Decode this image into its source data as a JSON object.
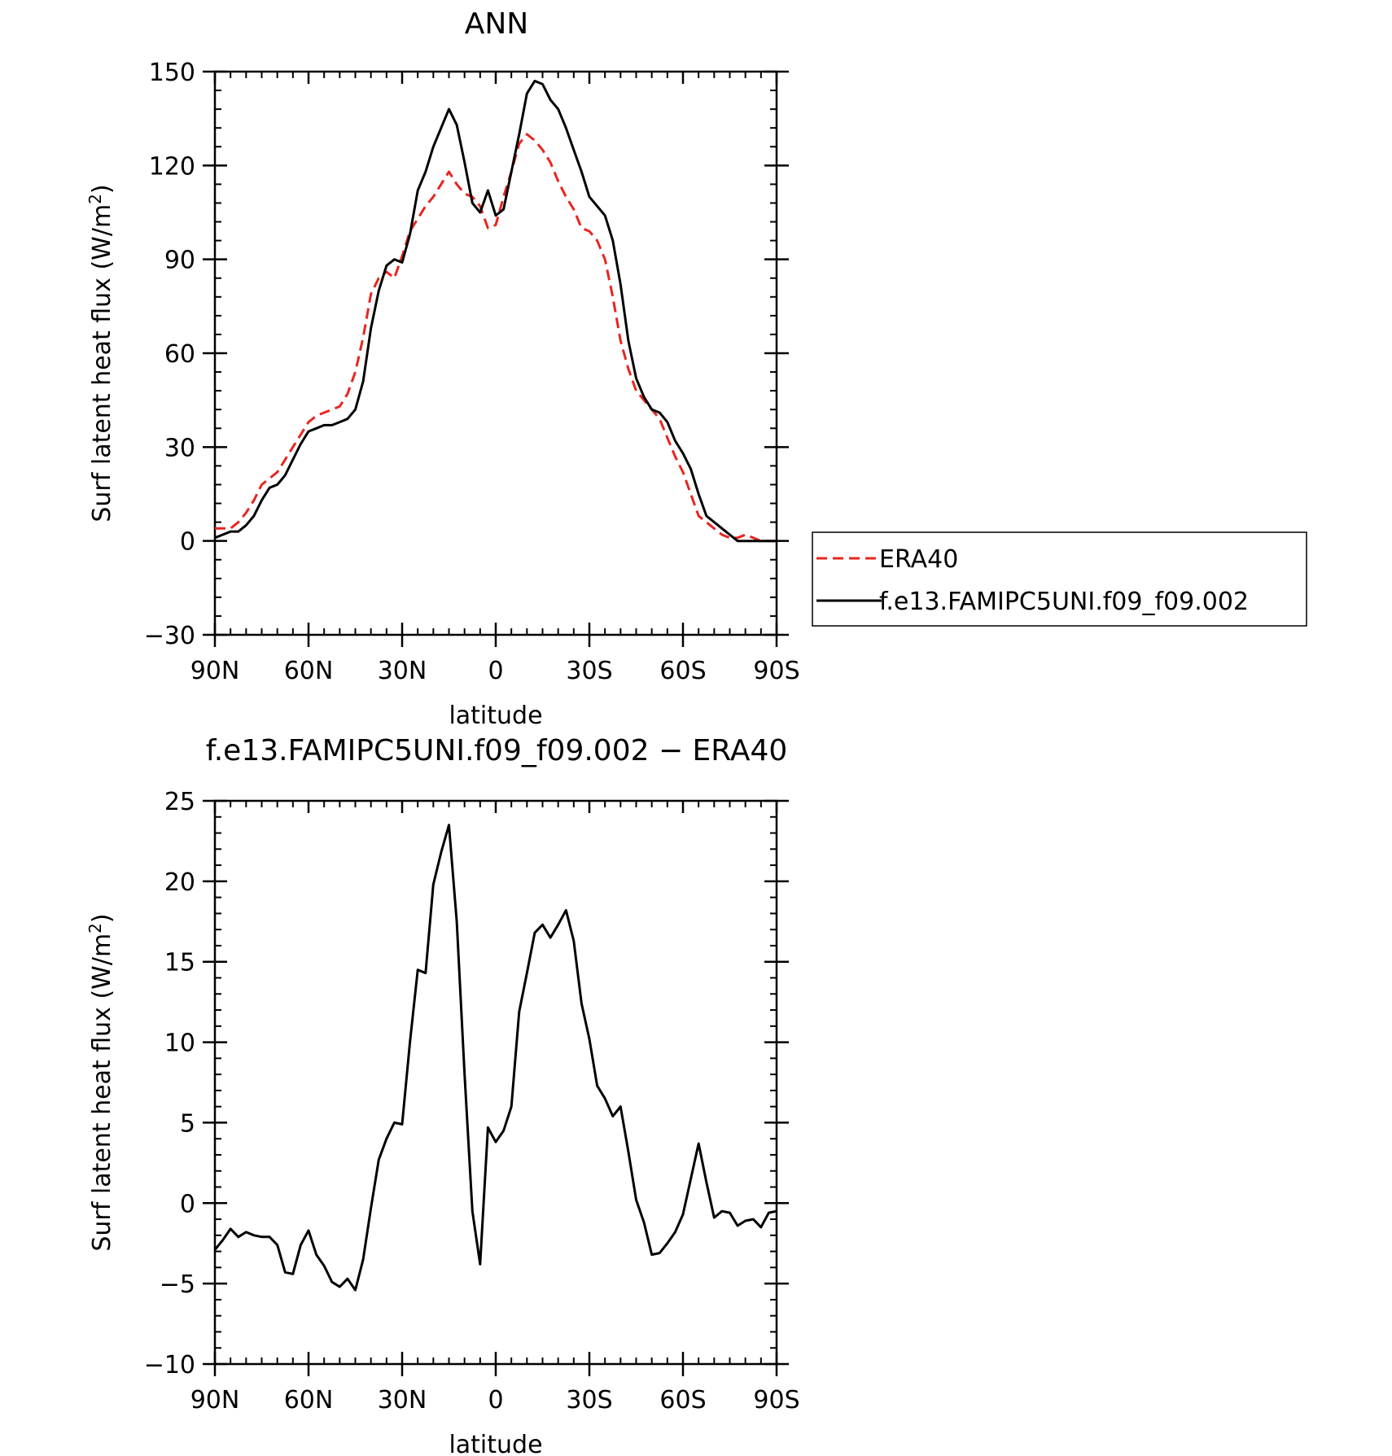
{
  "chart_data": [
    {
      "type": "line",
      "title": "ANN",
      "xlabel": "latitude",
      "ylabel": "Surf latent heat flux (W/m",
      "ylabel_sup": "2",
      "ylabel_close": ")",
      "xlim": [
        90,
        -90
      ],
      "ylim": [
        -30,
        150
      ],
      "x_ticks": [
        90,
        60,
        30,
        0,
        -30,
        -60,
        -90
      ],
      "x_tick_labels": [
        "90N",
        "60N",
        "30N",
        "0",
        "30S",
        "60S",
        "90S"
      ],
      "y_ticks": [
        -30,
        0,
        30,
        60,
        90,
        120,
        150
      ],
      "y_tick_labels": [
        "−30",
        "0",
        "30",
        "60",
        "90",
        "120",
        "150"
      ],
      "legend_position": "right",
      "x": [
        90,
        87.5,
        85,
        82.5,
        80,
        77.5,
        75,
        72.5,
        70,
        67.5,
        65,
        62.5,
        60,
        57.5,
        55,
        52.5,
        50,
        47.5,
        45,
        42.5,
        40,
        37.5,
        35,
        32.5,
        30,
        27.5,
        25,
        22.5,
        20,
        17.5,
        15,
        12.5,
        10,
        7.5,
        5,
        2.5,
        0,
        -2.5,
        -5,
        -7.5,
        -10,
        -12.5,
        -15,
        -17.5,
        -20,
        -22.5,
        -25,
        -27.5,
        -30,
        -32.5,
        -35,
        -37.5,
        -40,
        -42.5,
        -45,
        -47.5,
        -50,
        -52.5,
        -55,
        -57.5,
        -60,
        -62.5,
        -65,
        -67.5,
        -70,
        -72.5,
        -75,
        -77.5,
        -80,
        -82.5,
        -85,
        -87.5,
        -90
      ],
      "series": [
        {
          "name": "ERA40",
          "color": "#e8251f",
          "dash": "dashed",
          "values": [
            4,
            4,
            4,
            6,
            9,
            13,
            18,
            20,
            22,
            26,
            30,
            34,
            38,
            40,
            41,
            42,
            43,
            47,
            54,
            65,
            79,
            84,
            86,
            84,
            91,
            99,
            103,
            107,
            110,
            114,
            118,
            114,
            111,
            110,
            107,
            100,
            101,
            110,
            118,
            127,
            130,
            128,
            125,
            121,
            115,
            110,
            106,
            100,
            99,
            96,
            90,
            78,
            64,
            55,
            48,
            45,
            42,
            39,
            33,
            27,
            22,
            15,
            8,
            6,
            4,
            2,
            1,
            1,
            2,
            1,
            0,
            0,
            0
          ]
        },
        {
          "name": "f.e13.FAMIPC5UNI.f09_f09.002",
          "color": "#000000",
          "dash": "solid",
          "values": [
            1,
            2,
            3,
            3,
            5,
            8,
            13,
            17,
            18,
            21,
            26,
            31,
            35,
            36,
            37,
            37,
            38,
            39,
            42,
            51,
            68,
            80,
            88,
            90,
            89,
            98,
            112,
            118,
            126,
            132,
            138,
            133,
            121,
            108,
            105,
            112,
            104,
            106,
            118,
            130,
            143,
            147,
            146,
            141,
            138,
            132,
            125,
            118,
            110,
            107,
            104,
            96,
            82,
            64,
            52,
            46,
            42,
            41,
            38,
            32,
            28,
            23,
            15,
            8,
            6,
            4,
            2,
            0,
            0,
            0,
            0,
            0,
            0
          ]
        }
      ]
    },
    {
      "type": "line",
      "title": "f.e13.FAMIPC5UNI.f09_f09.002 − ERA40",
      "xlabel": "latitude",
      "ylabel": "Surf latent heat flux (W/m",
      "ylabel_sup": "2",
      "ylabel_close": ")",
      "xlim": [
        90,
        -90
      ],
      "ylim": [
        -10,
        25
      ],
      "x_ticks": [
        90,
        60,
        30,
        0,
        -30,
        -60,
        -90
      ],
      "x_tick_labels": [
        "90N",
        "60N",
        "30N",
        "0",
        "30S",
        "60S",
        "90S"
      ],
      "y_ticks": [
        -10,
        -5,
        0,
        5,
        10,
        15,
        20,
        25
      ],
      "y_tick_labels": [
        "−10",
        "−5",
        "0",
        "5",
        "10",
        "15",
        "20",
        "25"
      ],
      "x": [
        90,
        87.5,
        85,
        82.5,
        80,
        77.5,
        75,
        72.5,
        70,
        67.5,
        65,
        62.5,
        60,
        57.5,
        55,
        52.5,
        50,
        47.5,
        45,
        42.5,
        40,
        37.5,
        35,
        32.5,
        30,
        27.5,
        25,
        22.5,
        20,
        17.5,
        15,
        12.5,
        10,
        7.5,
        5,
        2.5,
        0,
        -2.5,
        -5,
        -7.5,
        -10,
        -12.5,
        -15,
        -17.5,
        -20,
        -22.5,
        -25,
        -27.5,
        -30,
        -32.5,
        -35,
        -37.5,
        -40,
        -42.5,
        -45,
        -47.5,
        -50,
        -52.5,
        -55,
        -57.5,
        -60,
        -62.5,
        -65,
        -67.5,
        -70,
        -72.5,
        -75,
        -77.5,
        -80,
        -82.5,
        -85,
        -87.5,
        -90
      ],
      "series": [
        {
          "color": "#000000",
          "dash": "solid",
          "values": [
            -2.9,
            -2.3,
            -1.6,
            -2.1,
            -1.8,
            -2.0,
            -2.1,
            -2.1,
            -2.6,
            -4.3,
            -4.4,
            -2.6,
            -1.7,
            -3.2,
            -3.9,
            -4.9,
            -5.2,
            -4.7,
            -5.4,
            -3.5,
            -0.3,
            2.7,
            4.0,
            5.0,
            4.9,
            10.0,
            14.5,
            14.3,
            19.8,
            21.8,
            23.5,
            17.5,
            8.0,
            -0.5,
            -3.8,
            4.7,
            3.8,
            4.5,
            6.0,
            11.9,
            14.3,
            16.8,
            17.3,
            16.5,
            17.3,
            18.2,
            16.3,
            12.4,
            10.2,
            7.3,
            6.5,
            5.4,
            6.0,
            3.2,
            0.2,
            -1.2,
            -3.2,
            -3.1,
            -2.5,
            -1.8,
            -0.7,
            1.5,
            3.7,
            1.3,
            -0.9,
            -0.5,
            -0.6,
            -1.4,
            -1.1,
            -1.0,
            -1.5,
            -0.6,
            -0.5
          ]
        }
      ]
    }
  ]
}
